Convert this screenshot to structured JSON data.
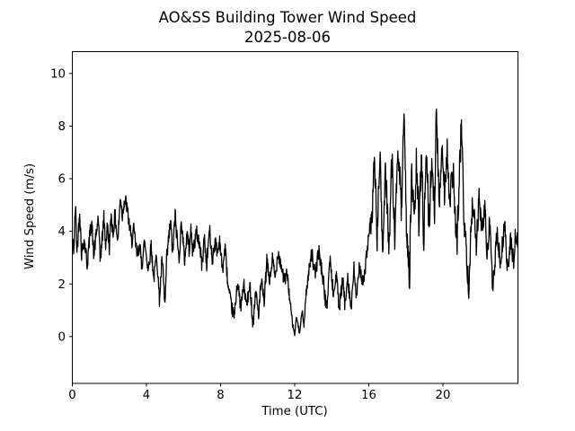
{
  "figure": {
    "title_line1": "AO&SS Building Tower Wind Speed",
    "title_line2": "2025-08-06",
    "xlabel": "Time (UTC)",
    "ylabel": "Wind Speed (m/s)",
    "background_color": "#ffffff",
    "text_color": "#000000",
    "line_color": "#000000"
  },
  "chart_data": {
    "type": "line",
    "title": "AO&SS Building Tower Wind Speed 2025-08-06",
    "xlabel": "Time (UTC)",
    "ylabel": "Wind Speed (m/s)",
    "grid": false,
    "legend": null,
    "xlim": [
      0,
      24.05
    ],
    "ylim": [
      -1.78,
      10.83
    ],
    "xticks": [
      0,
      4,
      8,
      12,
      16,
      20
    ],
    "yticks": [
      0,
      2,
      4,
      6,
      8,
      10
    ],
    "series": [
      {
        "name": "wind_speed_m_s",
        "color": "#000000",
        "linewidth": 1.3,
        "keypoints": {
          "t": [
            0.0,
            0.08,
            0.17,
            0.25,
            0.4,
            0.5,
            0.62,
            0.72,
            0.8,
            0.95,
            1.05,
            1.15,
            1.3,
            1.4,
            1.5,
            1.6,
            1.7,
            1.8,
            1.9,
            2.0,
            2.1,
            2.2,
            2.3,
            2.45,
            2.6,
            2.7,
            2.78,
            2.9,
            3.05,
            3.2,
            3.3,
            3.4,
            3.5,
            3.62,
            3.75,
            3.9,
            4.1,
            4.25,
            4.4,
            4.55,
            4.7,
            4.85,
            5.0,
            5.1,
            5.3,
            5.42,
            5.55,
            5.75,
            5.9,
            6.05,
            6.2,
            6.3,
            6.38,
            6.5,
            6.7,
            6.85,
            7.0,
            7.12,
            7.25,
            7.4,
            7.55,
            7.7,
            7.85,
            7.95,
            8.1,
            8.25,
            8.4,
            8.6,
            8.75,
            8.9,
            9.1,
            9.25,
            9.4,
            9.6,
            9.75,
            9.9,
            10.05,
            10.2,
            10.35,
            10.5,
            10.65,
            10.8,
            10.95,
            11.1,
            11.3,
            11.45,
            11.6,
            11.75,
            11.9,
            12.0,
            12.1,
            12.25,
            12.4,
            12.5,
            12.6,
            12.75,
            12.9,
            13.1,
            13.3,
            13.45,
            13.6,
            13.72,
            13.9,
            14.1,
            14.25,
            14.4,
            14.6,
            14.72,
            14.85,
            15.05,
            15.2,
            15.35,
            15.5,
            15.7,
            15.85,
            16.05,
            16.18,
            16.3,
            16.45,
            16.6,
            16.75,
            16.9,
            17.1,
            17.25,
            17.4,
            17.6,
            17.75,
            17.9,
            18.05,
            18.2,
            18.32,
            18.45,
            18.57,
            18.7,
            18.85,
            18.97,
            19.1,
            19.25,
            19.4,
            19.55,
            19.65,
            19.8,
            19.95,
            20.1,
            20.22,
            20.35,
            20.55,
            20.74,
            20.87,
            21.0,
            21.15,
            21.4,
            21.55,
            21.65,
            21.8,
            21.96,
            22.1,
            22.28,
            22.38,
            22.52,
            22.69,
            22.93,
            23.09,
            23.33,
            23.5,
            23.66,
            23.82,
            23.92,
            24.05
          ],
          "v": [
            3.6,
            3.3,
            5.0,
            3.2,
            4.8,
            3.1,
            3.7,
            3.3,
            2.7,
            3.9,
            4.4,
            3.1,
            3.9,
            4.55,
            2.9,
            3.6,
            4.5,
            3.5,
            4.2,
            3.4,
            4.6,
            3.9,
            4.65,
            3.6,
            5.35,
            4.6,
            5.1,
            5.1,
            4.4,
            3.55,
            4.1,
            3.6,
            3.05,
            3.5,
            2.7,
            3.6,
            2.55,
            3.45,
            2.2,
            3.15,
            1.4,
            2.95,
            1.15,
            3.0,
            4.35,
            3.15,
            4.6,
            2.95,
            4.4,
            2.85,
            4.0,
            3.3,
            4.1,
            3.25,
            3.95,
            3.6,
            2.7,
            3.75,
            2.75,
            4.05,
            2.9,
            3.6,
            3.2,
            3.7,
            2.5,
            3.4,
            1.9,
            1.1,
            0.75,
            2.1,
            1.1,
            2.0,
            1.2,
            1.9,
            0.45,
            1.75,
            0.85,
            2.1,
            1.3,
            2.85,
            2.1,
            2.95,
            2.2,
            3.25,
            2.6,
            2.1,
            2.4,
            1.3,
            0.4,
            0.08,
            0.75,
            0.15,
            0.95,
            0.4,
            1.55,
            2.35,
            3.3,
            2.3,
            3.25,
            2.6,
            1.8,
            0.95,
            2.95,
            1.55,
            2.4,
            1.0,
            2.2,
            1.1,
            2.4,
            1.0,
            2.55,
            1.4,
            2.75,
            1.9,
            2.9,
            4.0,
            4.5,
            6.95,
            3.7,
            7.0,
            3.1,
            6.45,
            3.45,
            6.85,
            3.8,
            7.15,
            4.75,
            8.05,
            3.95,
            2.3,
            6.35,
            4.2,
            6.6,
            4.25,
            7.05,
            3.6,
            7.25,
            4.15,
            6.8,
            4.95,
            8.6,
            4.85,
            7.5,
            5.4,
            7.3,
            4.95,
            6.3,
            3.25,
            5.8,
            8.1,
            4.3,
            1.9,
            4.6,
            5.2,
            3.45,
            5.3,
            4.0,
            4.85,
            2.9,
            4.5,
            1.7,
            4.0,
            2.7,
            4.25,
            2.45,
            3.7,
            2.8,
            3.95,
            3.5
          ]
        },
        "noise": {
          "seed": 42,
          "dt_hours": 0.0166667,
          "clamp": [
            0.03,
            8.65
          ],
          "amplitude_t": [
            0,
            2,
            4,
            4.6,
            5.2,
            8,
            8.5,
            10,
            11.5,
            11.9,
            12.5,
            13,
            15.8,
            16.3,
            17,
            20,
            21,
            21.5,
            22,
            23,
            24.05
          ],
          "amplitude_v": [
            0.32,
            0.3,
            0.3,
            0.25,
            0.35,
            0.3,
            0.25,
            0.28,
            0.3,
            0.12,
            0.12,
            0.3,
            0.3,
            0.5,
            0.65,
            0.7,
            0.65,
            0.5,
            0.45,
            0.4,
            0.35
          ]
        }
      }
    ]
  }
}
